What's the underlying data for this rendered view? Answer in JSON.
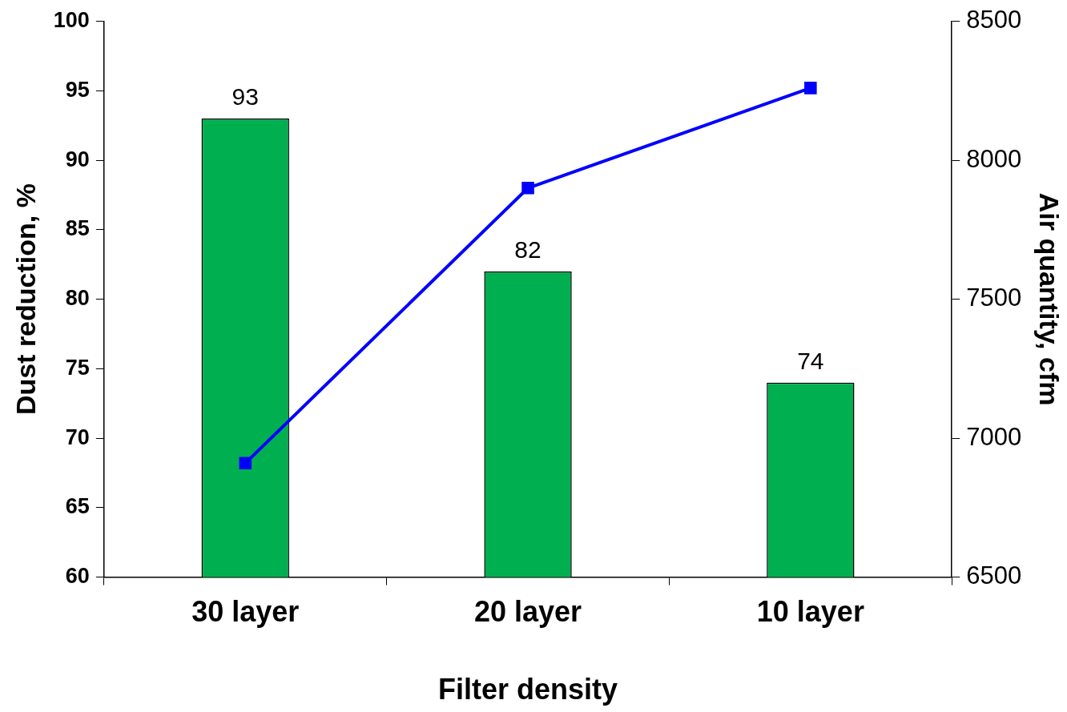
{
  "chart_data": {
    "type": "bar",
    "categories": [
      "30 layer",
      "20 layer",
      "10 layer"
    ],
    "xlabel": "Filter density",
    "ylabel": "Dust reduction, %",
    "y2label": "Air quantity, cfm",
    "series": [
      {
        "color": "#00b050",
        "values": [
          93,
          82,
          74
        ],
        "value_labels": [
          "93",
          "82",
          "74"
        ]
      },
      {
        "type": "line",
        "axis": "y2",
        "color": "#0000ff",
        "values": [
          6910,
          7900,
          8260
        ]
      }
    ],
    "ylim": [
      60,
      100
    ],
    "yticks": [
      60,
      65,
      70,
      75,
      80,
      85,
      90,
      95,
      100
    ],
    "y2lim": [
      6500,
      8500
    ],
    "y2ticks": [
      6500,
      7000,
      7500,
      8000,
      8500
    ],
    "marker": "square",
    "line_style": "solid",
    "grid": false,
    "legend": false
  }
}
